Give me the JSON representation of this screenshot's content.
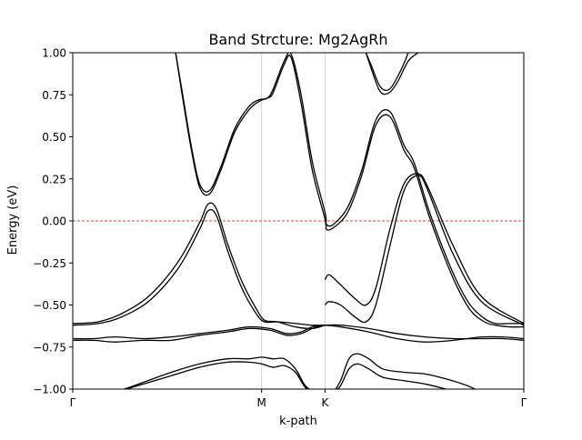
{
  "chart_data": {
    "type": "line",
    "title": "Band Strcture: Mg2AgRh",
    "xlabel": "k-path",
    "ylabel": "Energy (eV)",
    "xlim": [
      0,
      3.2
    ],
    "ylim": [
      -1.0,
      1.0
    ],
    "x_ticks": [
      {
        "label": "Γ",
        "value": 0
      },
      {
        "label": "M",
        "value": 1.34
      },
      {
        "label": "K",
        "value": 1.79
      },
      {
        "label": "Γ",
        "value": 3.2
      }
    ],
    "y_ticks": [
      {
        "label": "1.00",
        "value": 1.0
      },
      {
        "label": "0.75",
        "value": 0.75
      },
      {
        "label": "0.50",
        "value": 0.5
      },
      {
        "label": "0.25",
        "value": 0.25
      },
      {
        "label": "0.00",
        "value": 0.0
      },
      {
        "label": "−0.25",
        "value": -0.25
      },
      {
        "label": "−0.50",
        "value": -0.5
      },
      {
        "label": "−0.75",
        "value": -0.75
      },
      {
        "label": "−1.00",
        "value": -1.0
      }
    ],
    "vertical_grid": "at high-symmetry points M and K",
    "fermi_level": {
      "value": 0.0,
      "color": "#e00000",
      "style": "dashed"
    },
    "line_color": "#000000",
    "series": [
      {
        "x": [
          0,
          0.18,
          0.35,
          0.55,
          0.75,
          0.9,
          0.96,
          1.02,
          1.1,
          1.2,
          1.3,
          1.36,
          1.45,
          1.58,
          1.7,
          1.79
        ],
        "y": [
          -0.62,
          -0.61,
          -0.57,
          -0.47,
          -0.28,
          -0.05,
          0.06,
          0.03,
          -0.18,
          -0.4,
          -0.55,
          -0.6,
          -0.6,
          -0.61,
          -0.62,
          -0.62
        ]
      },
      {
        "x": [
          0,
          0.18,
          0.35,
          0.55,
          0.75,
          0.9,
          0.96,
          1.02,
          1.1,
          1.2,
          1.3,
          1.36,
          1.45,
          1.58,
          1.7,
          1.79
        ],
        "y": [
          -0.61,
          -0.6,
          -0.55,
          -0.44,
          -0.24,
          -0.01,
          0.1,
          0.07,
          -0.14,
          -0.36,
          -0.52,
          -0.59,
          -0.6,
          -0.63,
          -0.64,
          -0.62
        ]
      },
      {
        "x": [
          0,
          0.15,
          0.3,
          0.5,
          0.7,
          0.9,
          1.1,
          1.25,
          1.4,
          1.52,
          1.62,
          1.7,
          1.79
        ],
        "y": [
          -0.7,
          -0.7,
          -0.69,
          -0.7,
          -0.69,
          -0.67,
          -0.65,
          -0.63,
          -0.64,
          -0.67,
          -0.66,
          -0.63,
          -0.62
        ]
      },
      {
        "x": [
          0,
          0.15,
          0.3,
          0.5,
          0.7,
          0.9,
          1.1,
          1.25,
          1.4,
          1.52,
          1.62,
          1.7,
          1.79
        ],
        "y": [
          -0.71,
          -0.71,
          -0.72,
          -0.71,
          -0.71,
          -0.68,
          -0.66,
          -0.64,
          -0.65,
          -0.68,
          -0.67,
          -0.64,
          -0.62
        ]
      },
      {
        "x": [
          1.79,
          1.9,
          2.1,
          2.3,
          2.5,
          2.7,
          2.9,
          3.05,
          3.2
        ],
        "y": [
          -0.62,
          -0.63,
          -0.66,
          -0.7,
          -0.72,
          -0.71,
          -0.69,
          -0.69,
          -0.7
        ]
      },
      {
        "x": [
          1.79,
          1.9,
          2.1,
          2.3,
          2.5,
          2.7,
          2.9,
          3.05,
          3.2
        ],
        "y": [
          -0.62,
          -0.62,
          -0.64,
          -0.67,
          -0.69,
          -0.7,
          -0.7,
          -0.7,
          -0.71
        ]
      },
      {
        "x": [
          0.73,
          0.78,
          0.84,
          0.9,
          0.97,
          1.05,
          1.15,
          1.25,
          1.32,
          1.38,
          1.42,
          1.5,
          1.55,
          1.62,
          1.7,
          1.79,
          1.8,
          1.85,
          1.95,
          2.05,
          2.15,
          2.25,
          2.35,
          2.42,
          2.52,
          2.62,
          2.72,
          2.82,
          2.92,
          3.0,
          3.1,
          3.2
        ],
        "y": [
          1.0,
          0.75,
          0.45,
          0.22,
          0.18,
          0.32,
          0.55,
          0.68,
          0.72,
          0.73,
          0.78,
          0.95,
          0.99,
          0.75,
          0.35,
          0.05,
          -0.02,
          -0.02,
          0.08,
          0.3,
          0.6,
          0.65,
          0.45,
          0.35,
          0.08,
          -0.15,
          -0.35,
          -0.5,
          -0.58,
          -0.61,
          -0.61,
          -0.61
        ]
      },
      {
        "x": [
          0.73,
          0.78,
          0.84,
          0.9,
          0.97,
          1.05,
          1.15,
          1.25,
          1.32,
          1.38,
          1.42,
          1.5,
          1.55,
          1.62,
          1.7,
          1.79,
          1.8,
          1.85,
          1.95,
          2.05,
          2.15,
          2.25,
          2.35,
          2.42,
          2.52,
          2.62,
          2.72,
          2.82,
          2.92,
          3.0,
          3.1,
          3.2
        ],
        "y": [
          1.0,
          0.73,
          0.43,
          0.2,
          0.16,
          0.3,
          0.53,
          0.66,
          0.71,
          0.73,
          0.76,
          0.93,
          0.97,
          0.7,
          0.3,
          0.01,
          -0.05,
          -0.04,
          0.05,
          0.27,
          0.57,
          0.62,
          0.42,
          0.32,
          0.05,
          -0.18,
          -0.38,
          -0.53,
          -0.6,
          -0.62,
          -0.63,
          -0.63
        ]
      },
      {
        "x": [
          1.79,
          1.82,
          1.9,
          2.0,
          2.08,
          2.15,
          2.25,
          2.35,
          2.45,
          2.52,
          2.7,
          2.9,
          3.2
        ],
        "y": [
          -0.35,
          -0.32,
          -0.38,
          -0.46,
          -0.5,
          -0.4,
          -0.05,
          0.22,
          0.28,
          0.2,
          -0.15,
          -0.45,
          -0.61
        ]
      },
      {
        "x": [
          1.79,
          1.82,
          1.9,
          2.0,
          2.08,
          2.15,
          2.25,
          2.35,
          2.45,
          2.52,
          2.7,
          2.9,
          3.2
        ],
        "y": [
          -0.5,
          -0.48,
          -0.5,
          -0.57,
          -0.6,
          -0.5,
          -0.15,
          0.18,
          0.27,
          0.18,
          -0.2,
          -0.48,
          -0.62
        ]
      },
      {
        "x": [
          2.08,
          2.12,
          2.18,
          2.24,
          2.3,
          2.38,
          2.45,
          2.5,
          2.56
        ],
        "y": [
          1.0,
          0.92,
          0.8,
          0.78,
          0.85,
          1.0,
          1.2,
          1.4,
          1.0
        ]
      },
      {
        "x": [
          2.08,
          2.12,
          2.18,
          2.24,
          2.3,
          2.38,
          2.45
        ],
        "y": [
          1.0,
          0.9,
          0.77,
          0.76,
          0.82,
          0.95,
          1.0
        ]
      },
      {
        "x": [
          0.3,
          0.5,
          0.7,
          0.9,
          1.1,
          1.25,
          1.34,
          1.42,
          1.5,
          1.58,
          1.65,
          1.72
        ],
        "y": [
          -1.02,
          -0.96,
          -0.9,
          -0.85,
          -0.82,
          -0.82,
          -0.81,
          -0.82,
          -0.82,
          -0.88,
          -0.98,
          -1.02
        ]
      },
      {
        "x": [
          0.3,
          0.5,
          0.7,
          0.9,
          1.1,
          1.25,
          1.34,
          1.42,
          1.5,
          1.58,
          1.65,
          1.72
        ],
        "y": [
          -1.02,
          -0.97,
          -0.92,
          -0.87,
          -0.84,
          -0.84,
          -0.85,
          -0.87,
          -0.86,
          -0.9,
          -0.99,
          -1.02
        ]
      },
      {
        "x": [
          1.85,
          1.9,
          1.96,
          2.02,
          2.1,
          2.2,
          2.35,
          2.5,
          2.65,
          2.8,
          2.9
        ],
        "y": [
          -1.02,
          -0.95,
          -0.82,
          -0.79,
          -0.82,
          -0.88,
          -0.9,
          -0.91,
          -0.94,
          -0.98,
          -1.02
        ]
      },
      {
        "x": [
          1.85,
          1.9,
          1.96,
          2.02,
          2.1,
          2.2,
          2.35,
          2.5,
          2.65,
          2.75
        ],
        "y": [
          -1.02,
          -0.98,
          -0.88,
          -0.85,
          -0.88,
          -0.93,
          -0.95,
          -0.97,
          -1.0,
          -1.02
        ]
      }
    ]
  }
}
